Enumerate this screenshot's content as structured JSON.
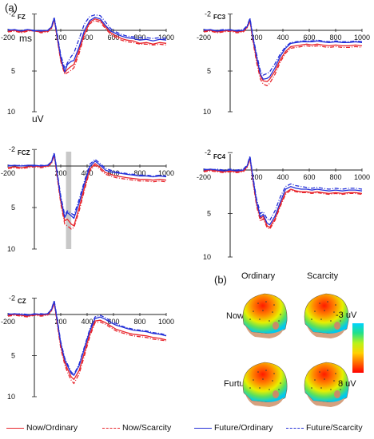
{
  "figure": {
    "panel_a_label": "(a)",
    "panel_b_label": "(b)",
    "time_unit": "ms",
    "amplitude_unit": "uV"
  },
  "colors": {
    "now_ordinary": "#e8262d",
    "now_scarcity": "#e8262d",
    "future_ordinary": "#2430d8",
    "future_scarcity": "#2430d8"
  },
  "chart_data": [
    {
      "type": "line",
      "electrode": "FZ",
      "xlim": [
        -200,
        1000
      ],
      "ylim": [
        -2,
        10
      ],
      "y_inverted": true,
      "xticks": [
        "-200",
        "200",
        "400",
        "600",
        "800",
        "1000"
      ],
      "yticks": [
        "-2",
        "5",
        "10"
      ],
      "x": [
        -200,
        -150,
        -100,
        -50,
        0,
        50,
        100,
        130,
        150,
        170,
        200,
        230,
        250,
        280,
        300,
        340,
        380,
        420,
        460,
        500,
        540,
        580,
        620,
        660,
        700,
        750,
        800,
        850,
        900,
        950,
        1000
      ],
      "series": [
        {
          "name": "Now/Ordinary",
          "values": [
            0.1,
            0.0,
            0.2,
            0.0,
            0.1,
            0.2,
            0.1,
            -0.3,
            -1.4,
            0.6,
            3.6,
            5.2,
            4.8,
            4.4,
            4.2,
            2.4,
            0.4,
            -1.0,
            -1.4,
            -1.2,
            -0.4,
            0.3,
            0.7,
            1.0,
            1.2,
            1.3,
            1.6,
            1.5,
            1.7,
            1.5,
            1.6
          ]
        },
        {
          "name": "Now/Scarcity",
          "values": [
            0.2,
            0.1,
            0.3,
            0.1,
            0.0,
            0.3,
            0.2,
            -0.2,
            -1.3,
            0.7,
            3.8,
            5.4,
            5.2,
            4.9,
            4.6,
            2.8,
            0.6,
            -0.8,
            -1.2,
            -1.0,
            -0.2,
            0.5,
            0.9,
            1.2,
            1.4,
            1.5,
            1.7,
            1.7,
            1.8,
            1.7,
            1.8
          ]
        },
        {
          "name": "Future/Ordinary",
          "values": [
            0.0,
            -0.1,
            0.1,
            -0.1,
            0.0,
            0.1,
            0.0,
            -0.4,
            -1.5,
            0.4,
            3.3,
            5.1,
            4.2,
            3.8,
            3.7,
            2.0,
            0.0,
            -1.2,
            -1.6,
            -1.4,
            -0.6,
            0.1,
            0.4,
            0.7,
            0.9,
            1.0,
            1.2,
            1.1,
            1.3,
            1.1,
            1.2
          ]
        },
        {
          "name": "Future/Scarcity",
          "values": [
            -0.1,
            0.0,
            0.0,
            -0.1,
            0.1,
            0.0,
            0.1,
            -0.5,
            -1.6,
            0.2,
            3.0,
            4.7,
            4.0,
            3.2,
            2.8,
            1.0,
            -0.8,
            -1.7,
            -1.9,
            -1.8,
            -1.0,
            -0.2,
            0.2,
            0.5,
            0.7,
            0.8,
            0.9,
            0.9,
            1.0,
            0.9,
            1.0
          ]
        }
      ]
    },
    {
      "type": "line",
      "electrode": "FC3",
      "xlim": [
        -200,
        1000
      ],
      "ylim": [
        -2,
        10
      ],
      "y_inverted": true,
      "xticks": [
        "-200",
        "200",
        "400",
        "600",
        "800",
        "1000"
      ],
      "yticks": [
        "-2",
        "5",
        "10"
      ],
      "x": [
        -200,
        -150,
        -100,
        -50,
        0,
        50,
        100,
        130,
        150,
        170,
        200,
        230,
        250,
        280,
        300,
        340,
        380,
        420,
        460,
        500,
        540,
        580,
        620,
        660,
        700,
        750,
        800,
        850,
        900,
        950,
        1000
      ],
      "series": [
        {
          "name": "Now/Ordinary",
          "values": [
            0.1,
            0.0,
            0.2,
            0.1,
            0.0,
            0.2,
            0.1,
            -0.4,
            -1.3,
            0.9,
            3.5,
            5.6,
            6.2,
            6.3,
            6.0,
            5.0,
            3.6,
            2.6,
            2.0,
            1.9,
            1.8,
            1.7,
            1.8,
            1.7,
            1.8,
            1.9,
            1.8,
            1.9,
            1.9,
            1.8,
            1.9
          ]
        },
        {
          "name": "Now/Scarcity",
          "values": [
            0.2,
            0.1,
            0.3,
            0.2,
            0.1,
            0.3,
            0.2,
            -0.3,
            -1.2,
            1.1,
            3.9,
            6.0,
            6.6,
            6.8,
            6.5,
            5.4,
            3.9,
            2.8,
            2.2,
            2.1,
            2.0,
            1.9,
            2.0,
            1.9,
            2.0,
            2.1,
            2.0,
            2.1,
            2.1,
            2.0,
            2.1
          ]
        },
        {
          "name": "Future/Ordinary",
          "values": [
            0.0,
            -0.1,
            0.1,
            0.0,
            -0.1,
            0.1,
            0.0,
            -0.5,
            -1.4,
            0.7,
            3.2,
            5.4,
            6.0,
            5.9,
            5.7,
            4.6,
            3.2,
            2.2,
            1.6,
            1.5,
            1.4,
            1.4,
            1.4,
            1.3,
            1.4,
            1.5,
            1.4,
            1.5,
            1.5,
            1.4,
            1.5
          ]
        },
        {
          "name": "Future/Scarcity",
          "values": [
            -0.1,
            0.0,
            0.0,
            -0.1,
            0.0,
            0.0,
            -0.1,
            -0.6,
            -1.5,
            0.5,
            2.9,
            5.0,
            5.5,
            5.3,
            5.1,
            4.1,
            2.9,
            2.0,
            1.5,
            1.4,
            1.3,
            1.3,
            1.3,
            1.2,
            1.3,
            1.4,
            1.3,
            1.4,
            1.4,
            1.3,
            1.4
          ]
        }
      ]
    },
    {
      "type": "line",
      "electrode": "FCZ",
      "xlim": [
        -200,
        1000
      ],
      "ylim": [
        -2,
        10
      ],
      "y_inverted": true,
      "xticks": [
        "-200",
        "200",
        "400",
        "600",
        "800",
        "1000"
      ],
      "yticks": [
        "-2",
        "5",
        "10"
      ],
      "shaded_interval": [
        240,
        280
      ],
      "x": [
        -200,
        -150,
        -100,
        -50,
        0,
        50,
        100,
        130,
        150,
        170,
        200,
        230,
        250,
        280,
        300,
        340,
        380,
        420,
        460,
        500,
        540,
        580,
        620,
        660,
        700,
        750,
        800,
        850,
        900,
        950,
        1000
      ],
      "series": [
        {
          "name": "Now/Ordinary",
          "values": [
            0.2,
            0.1,
            0.2,
            0.1,
            0.0,
            0.1,
            0.0,
            -0.4,
            -1.4,
            0.8,
            4.2,
            6.6,
            6.4,
            7.0,
            7.2,
            5.0,
            2.6,
            0.4,
            -0.3,
            0.2,
            0.8,
            1.0,
            1.2,
            1.3,
            1.4,
            1.5,
            1.6,
            1.6,
            1.7,
            1.6,
            1.7
          ]
        },
        {
          "name": "Now/Scarcity",
          "values": [
            0.3,
            0.2,
            0.3,
            0.2,
            0.1,
            0.2,
            0.1,
            -0.3,
            -1.3,
            1.0,
            4.5,
            7.0,
            7.2,
            7.6,
            7.4,
            5.4,
            2.9,
            0.6,
            -0.1,
            0.4,
            1.0,
            1.2,
            1.4,
            1.5,
            1.6,
            1.7,
            1.8,
            1.8,
            1.9,
            1.8,
            1.9
          ]
        },
        {
          "name": "Future/Ordinary",
          "values": [
            0.0,
            -0.1,
            0.0,
            -0.1,
            -0.1,
            0.0,
            -0.1,
            -0.5,
            -1.5,
            0.6,
            3.9,
            6.2,
            5.6,
            6.0,
            6.3,
            4.4,
            2.1,
            0.1,
            -0.6,
            -0.1,
            0.5,
            0.7,
            0.8,
            0.9,
            1.0,
            1.1,
            1.2,
            1.2,
            1.3,
            1.2,
            1.3
          ]
        },
        {
          "name": "Future/Scarcity",
          "values": [
            -0.1,
            0.0,
            -0.1,
            0.0,
            0.0,
            -0.1,
            0.0,
            -0.6,
            -1.6,
            0.4,
            3.6,
            5.9,
            5.4,
            5.7,
            5.9,
            4.0,
            1.8,
            -0.2,
            -0.8,
            -0.3,
            0.3,
            0.5,
            0.7,
            0.8,
            0.9,
            1.0,
            1.1,
            1.1,
            1.2,
            1.1,
            1.2
          ]
        }
      ]
    },
    {
      "type": "line",
      "electrode": "FC4",
      "xlim": [
        -200,
        1000
      ],
      "ylim": [
        -2,
        10
      ],
      "y_inverted": true,
      "xticks": [
        "-200",
        "200",
        "400",
        "600",
        "800",
        "1000"
      ],
      "yticks": [
        "-2",
        "5",
        "10"
      ],
      "x": [
        -200,
        -150,
        -100,
        -50,
        0,
        50,
        100,
        130,
        150,
        170,
        200,
        230,
        250,
        280,
        300,
        340,
        380,
        420,
        460,
        500,
        540,
        580,
        620,
        660,
        700,
        750,
        800,
        850,
        900,
        950,
        1000
      ],
      "series": [
        {
          "name": "Now/Ordinary",
          "values": [
            0.1,
            0.0,
            0.1,
            0.2,
            0.1,
            0.2,
            0.1,
            -0.4,
            -1.4,
            0.9,
            3.8,
            5.6,
            5.3,
            6.4,
            6.6,
            5.6,
            4.0,
            2.6,
            2.2,
            2.4,
            2.5,
            2.5,
            2.6,
            2.5,
            2.6,
            2.7,
            2.6,
            2.7,
            2.6,
            2.6,
            2.7
          ]
        },
        {
          "name": "Now/Scarcity",
          "values": [
            0.2,
            0.1,
            0.2,
            0.3,
            0.2,
            0.3,
            0.2,
            -0.3,
            -1.3,
            1.1,
            4.1,
            5.9,
            5.6,
            6.6,
            6.8,
            5.8,
            4.2,
            2.8,
            2.3,
            2.5,
            2.6,
            2.6,
            2.7,
            2.6,
            2.7,
            2.8,
            2.7,
            2.8,
            2.7,
            2.7,
            2.8
          ]
        },
        {
          "name": "Future/Ordinary",
          "values": [
            0.0,
            -0.1,
            0.0,
            0.1,
            0.0,
            0.1,
            0.0,
            -0.5,
            -1.5,
            0.7,
            3.6,
            5.4,
            5.1,
            6.1,
            6.3,
            5.3,
            3.7,
            2.2,
            1.9,
            2.1,
            2.2,
            2.2,
            2.3,
            2.2,
            2.3,
            2.4,
            2.3,
            2.4,
            2.3,
            2.3,
            2.4
          ]
        },
        {
          "name": "Future/Scarcity",
          "values": [
            -0.1,
            0.0,
            -0.1,
            0.0,
            -0.1,
            0.0,
            -0.1,
            -0.6,
            -1.6,
            0.5,
            3.3,
            5.0,
            4.8,
            5.6,
            5.8,
            4.7,
            3.1,
            1.9,
            1.6,
            1.8,
            1.9,
            2.0,
            2.1,
            2.0,
            2.1,
            2.2,
            2.1,
            2.2,
            2.1,
            2.1,
            2.2
          ]
        }
      ]
    },
    {
      "type": "line",
      "electrode": "CZ",
      "xlim": [
        -200,
        1000
      ],
      "ylim": [
        -2,
        10
      ],
      "y_inverted": true,
      "xticks": [
        "-200",
        "200",
        "400",
        "600",
        "800",
        "1000"
      ],
      "yticks": [
        "-2",
        "5",
        "10"
      ],
      "x": [
        -200,
        -150,
        -100,
        -50,
        0,
        50,
        100,
        130,
        150,
        170,
        200,
        230,
        250,
        280,
        300,
        340,
        380,
        420,
        460,
        500,
        540,
        580,
        620,
        660,
        700,
        750,
        800,
        850,
        900,
        950,
        1000
      ],
      "series": [
        {
          "name": "Now/Ordinary",
          "values": [
            0.1,
            0.0,
            0.1,
            0.2,
            0.0,
            0.1,
            0.0,
            -0.5,
            -1.5,
            0.6,
            3.8,
            5.8,
            6.6,
            7.6,
            7.9,
            6.8,
            4.6,
            2.4,
            0.8,
            0.7,
            1.0,
            1.4,
            1.8,
            2.0,
            2.2,
            2.4,
            2.5,
            2.6,
            2.8,
            2.9,
            3.1
          ]
        },
        {
          "name": "Now/Scarcity",
          "values": [
            0.2,
            0.1,
            0.2,
            0.3,
            0.1,
            0.2,
            0.1,
            -0.4,
            -1.4,
            0.8,
            4.1,
            6.1,
            7.0,
            8.0,
            8.4,
            7.2,
            5.0,
            2.7,
            1.0,
            0.9,
            1.2,
            1.6,
            2.0,
            2.2,
            2.4,
            2.6,
            2.7,
            2.8,
            3.0,
            3.1,
            3.2
          ]
        },
        {
          "name": "Future/Ordinary",
          "values": [
            0.0,
            -0.1,
            0.0,
            0.1,
            -0.1,
            0.0,
            -0.1,
            -0.6,
            -1.6,
            0.4,
            3.5,
            5.5,
            6.2,
            7.2,
            7.4,
            6.2,
            4.1,
            2.0,
            0.5,
            0.3,
            0.6,
            1.0,
            1.3,
            1.5,
            1.7,
            1.9,
            2.0,
            2.1,
            2.3,
            2.4,
            2.6
          ]
        },
        {
          "name": "Future/Scarcity",
          "values": [
            -0.1,
            0.0,
            -0.1,
            0.0,
            0.0,
            -0.1,
            0.0,
            -0.7,
            -1.7,
            0.2,
            3.3,
            5.3,
            6.0,
            7.0,
            7.3,
            6.0,
            3.9,
            1.8,
            0.3,
            0.1,
            0.4,
            0.8,
            1.1,
            1.4,
            1.6,
            1.8,
            1.9,
            2.0,
            2.2,
            2.3,
            2.5
          ]
        }
      ]
    }
  ],
  "topography": {
    "columns": [
      "Ordinary",
      "Scarcity"
    ],
    "rows": [
      "Now",
      "Furture"
    ],
    "colorbar_top": "-3 uV",
    "colorbar_bottom": "8 uV"
  },
  "legend": [
    "Now/Ordinary",
    "Now/Scarcity",
    "Future/Ordinary",
    "Future/Scarcity"
  ]
}
